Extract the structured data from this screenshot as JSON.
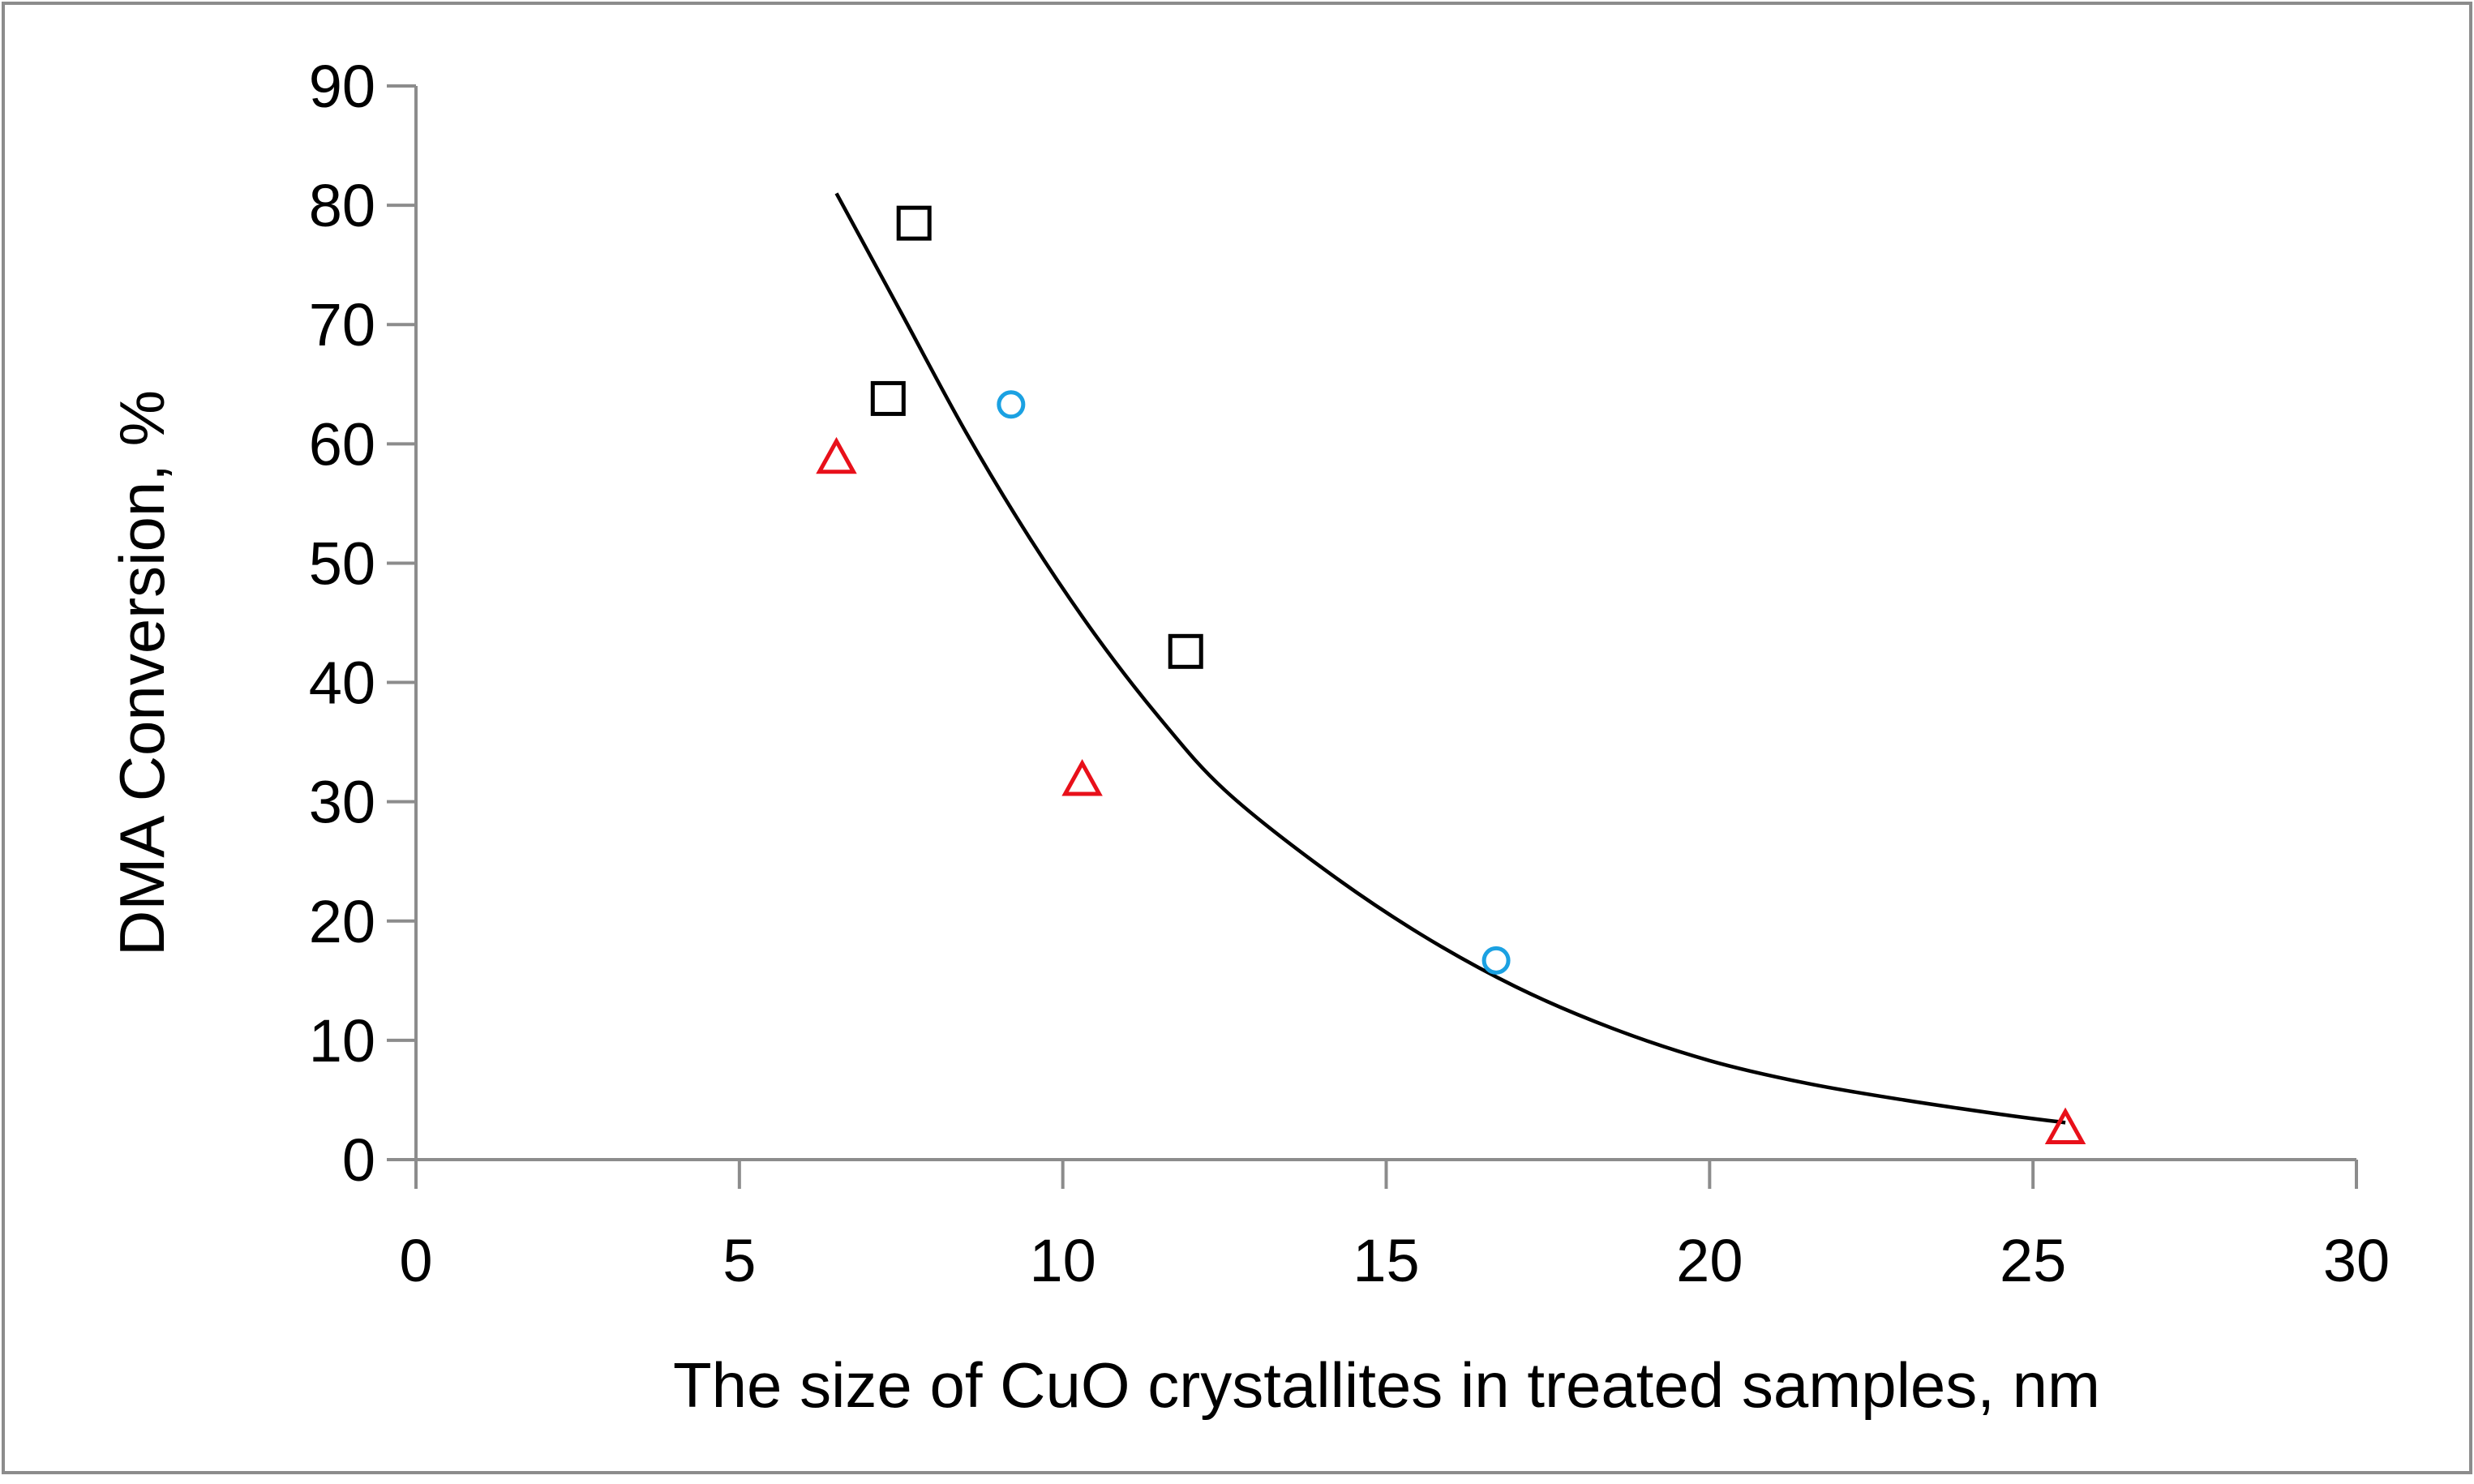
{
  "chart_data": {
    "type": "scatter",
    "title": "",
    "xlabel": "The size of CuO crystallites in treated samples, nm",
    "ylabel": "DMA Conversion, %",
    "xlim": [
      0,
      30
    ],
    "ylim": [
      0,
      90
    ],
    "xticks": [
      0,
      5,
      10,
      15,
      20,
      25,
      30
    ],
    "yticks": [
      0,
      10,
      20,
      30,
      40,
      50,
      60,
      70,
      80,
      90
    ],
    "series": [
      {
        "name": "squares",
        "marker": "square",
        "color": "#000000",
        "points": [
          {
            "x": 7.7,
            "y": 78.5
          },
          {
            "x": 7.3,
            "y": 63.8
          },
          {
            "x": 11.9,
            "y": 42.6
          }
        ]
      },
      {
        "name": "circles",
        "marker": "circle",
        "color": "#1ba1e2",
        "points": [
          {
            "x": 9.2,
            "y": 63.3
          },
          {
            "x": 16.7,
            "y": 16.7
          }
        ]
      },
      {
        "name": "triangles",
        "marker": "triangle",
        "color": "#e8101a",
        "points": [
          {
            "x": 6.5,
            "y": 58.8
          },
          {
            "x": 10.3,
            "y": 31.8
          },
          {
            "x": 25.5,
            "y": 2.6
          }
        ]
      }
    ],
    "trendline": {
      "type": "exponential",
      "color": "#000000",
      "points": [
        {
          "x": 6.5,
          "y": 81
        },
        {
          "x": 7.5,
          "y": 71
        },
        {
          "x": 8.5,
          "y": 61
        },
        {
          "x": 9.5,
          "y": 52
        },
        {
          "x": 10.5,
          "y": 44
        },
        {
          "x": 11.5,
          "y": 37
        },
        {
          "x": 12.5,
          "y": 31
        },
        {
          "x": 14,
          "y": 24.5
        },
        {
          "x": 15.5,
          "y": 19
        },
        {
          "x": 17,
          "y": 14.5
        },
        {
          "x": 18.5,
          "y": 11
        },
        {
          "x": 20,
          "y": 8.3
        },
        {
          "x": 21.5,
          "y": 6.4
        },
        {
          "x": 23,
          "y": 5
        },
        {
          "x": 24.5,
          "y": 3.8
        },
        {
          "x": 25.5,
          "y": 3.1
        }
      ]
    }
  }
}
